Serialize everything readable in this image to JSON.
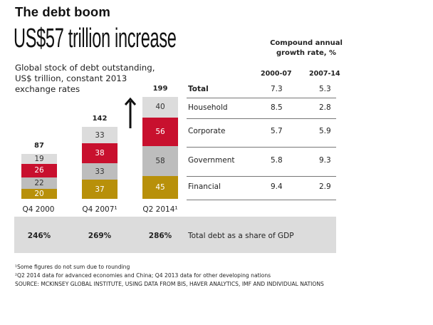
{
  "kicker": "The debt boom",
  "headline": "US$57 trillion increase",
  "subtitle_lines": [
    "Global stock of debt outstanding,",
    "US$ trillion, constant 2013",
    "exchange rates"
  ],
  "colors": {
    "Household": "#dcdcdc",
    "Corporate": "#c8102e",
    "Government": "#bdbdbd",
    "Financial": "#b8900a",
    "gdp_band": "#dcdcdc"
  },
  "chart_data": {
    "type": "bar",
    "stacked": true,
    "title": "US$57 trillion increase",
    "subtitle": "Global stock of debt outstanding, US$ trillion, constant 2013 exchange rates",
    "categories": [
      "Q4 2000",
      "Q4 2007¹",
      "Q2 2014¹"
    ],
    "series": [
      {
        "name": "Financial",
        "values": [
          20,
          37,
          45
        ]
      },
      {
        "name": "Government",
        "values": [
          22,
          33,
          58
        ]
      },
      {
        "name": "Corporate",
        "values": [
          26,
          38,
          56
        ]
      },
      {
        "name": "Household",
        "values": [
          19,
          33,
          40
        ]
      }
    ],
    "totals": [
      87,
      142,
      199
    ],
    "gdp_share": [
      "246%",
      "269%",
      "286%"
    ],
    "gdp_share_label": "Total debt as a share of GDP",
    "ylim": [
      0,
      199
    ],
    "grid": false,
    "annotation": "up-arrow"
  },
  "growth_table": {
    "title_lines": [
      "Compound annual",
      "growth rate, %"
    ],
    "columns": [
      "2000-07",
      "2007-14"
    ],
    "rows": [
      {
        "label": "Total",
        "v1": "7.3",
        "v2": "5.3"
      },
      {
        "label": "Household",
        "v1": "8.5",
        "v2": "2.8"
      },
      {
        "label": "Corporate",
        "v1": "5.7",
        "v2": "5.9"
      },
      {
        "label": "Government",
        "v1": "5.8",
        "v2": "9.3"
      },
      {
        "label": "Financial",
        "v1": "9.4",
        "v2": "2.9"
      }
    ]
  },
  "footnotes": [
    "¹Some figures do not sum due to rounding",
    "²Q2 2014 data for advanced economies and China; Q4 2013 data for other developing nations",
    "SOURCE: MCKINSEY GLOBAL INSTITUTE, USING DATA FROM BIS, HAVER ANALYTICS, IMF AND INDIVIDUAL NATIONS"
  ]
}
